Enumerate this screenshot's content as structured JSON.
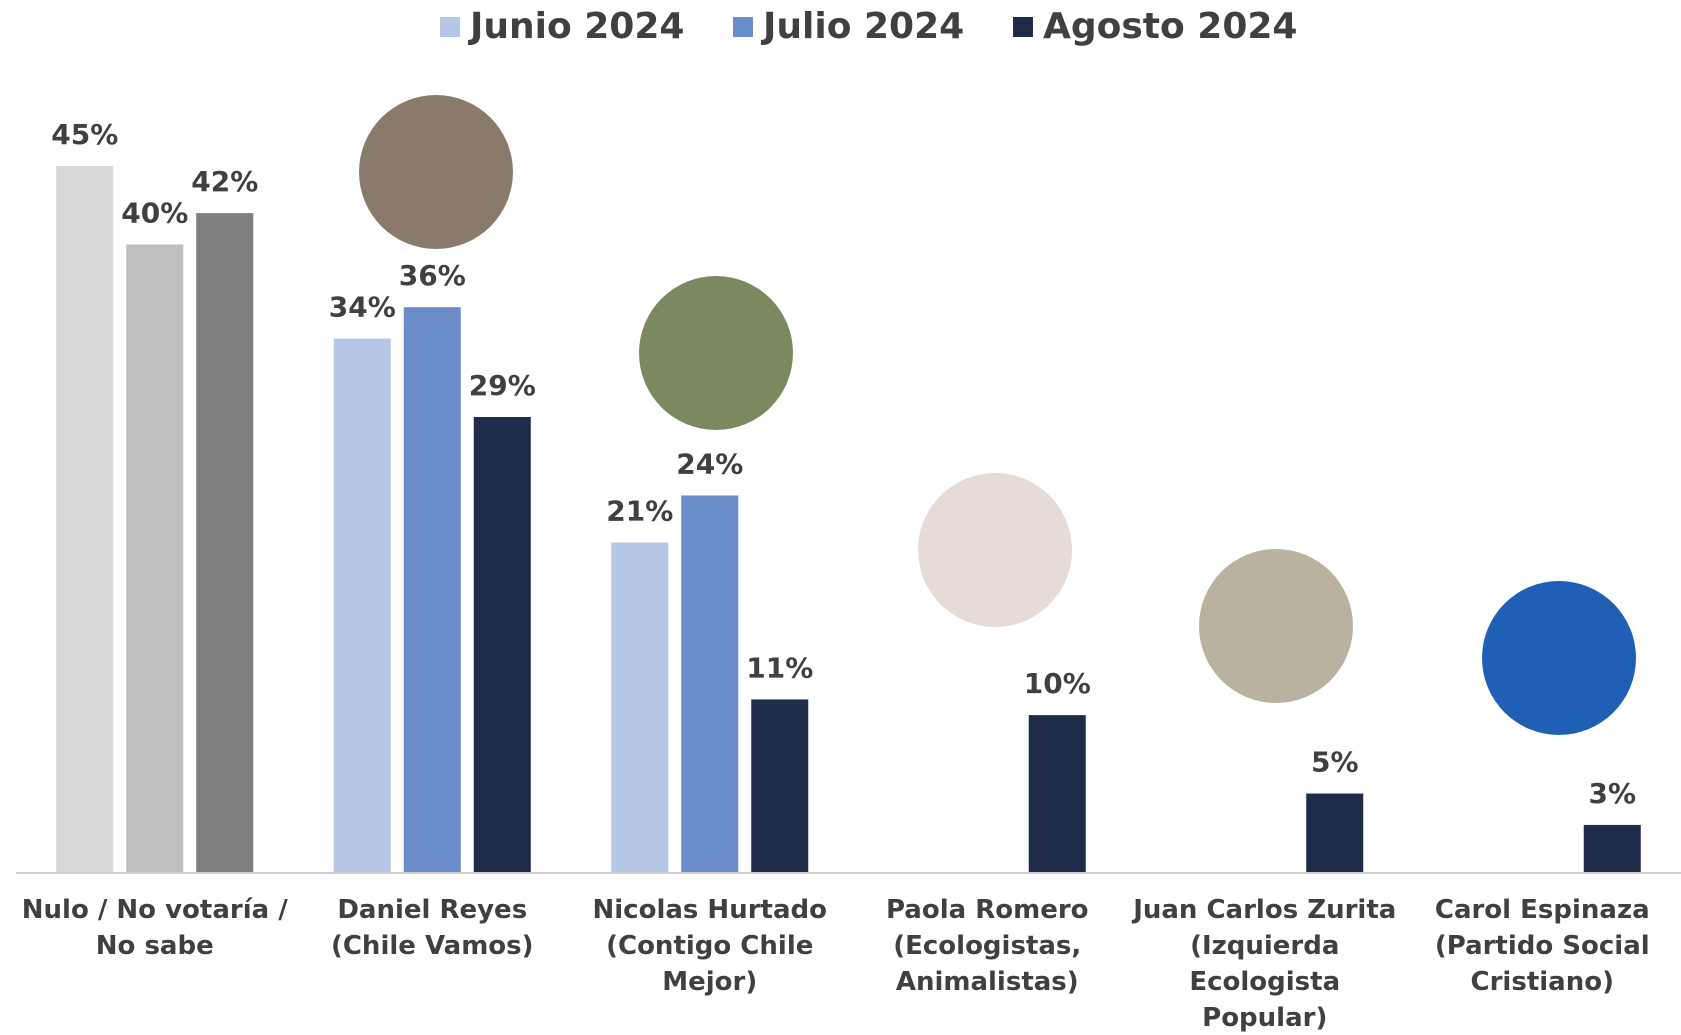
{
  "chart_data": {
    "type": "bar",
    "categories": [
      "Nulo / No votaría / No sabe",
      "Daniel Reyes (Chile Vamos)",
      "Nicolas Hurtado (Contigo Chile Mejor)",
      "Paola Romero (Ecologistas, Animalistas)",
      "Juan Carlos Zurita (Izquierda Ecologista Popular)",
      "Carol Espinaza (Partido Social Cristiano)"
    ],
    "series": [
      {
        "name": "Junio 2024",
        "color": "#b4c7e7",
        "bar_colors": [
          "#d9d9d9",
          "#b4c7e7",
          "#b4c7e7",
          "#b4c7e7",
          "#b4c7e7",
          "#b4c7e7"
        ],
        "values": [
          45,
          34,
          21,
          null,
          null,
          null
        ],
        "value_labels": [
          "45%",
          "34%",
          "21%",
          null,
          null,
          null
        ]
      },
      {
        "name": "Julio 2024",
        "color": "#6a8ccb",
        "bar_colors": [
          "#bfbfbf",
          "#6a8ccb",
          "#6a8ccb",
          "#6a8ccb",
          "#6a8ccb",
          "#6a8ccb"
        ],
        "values": [
          40,
          36,
          24,
          null,
          null,
          null
        ],
        "value_labels": [
          "40%",
          "36%",
          "24%",
          null,
          null,
          null
        ]
      },
      {
        "name": "Agosto 2024",
        "color": "#1f2b4b",
        "bar_colors": [
          "#7f7f7f",
          "#1f2b4b",
          "#1f2b4b",
          "#1f2b4b",
          "#1f2b4b",
          "#1f2b4b"
        ],
        "values": [
          42,
          29,
          11,
          10,
          5,
          3
        ],
        "value_labels": [
          "42%",
          "29%",
          "11%",
          "10%",
          "5%",
          "3%"
        ]
      }
    ]
  }
}
